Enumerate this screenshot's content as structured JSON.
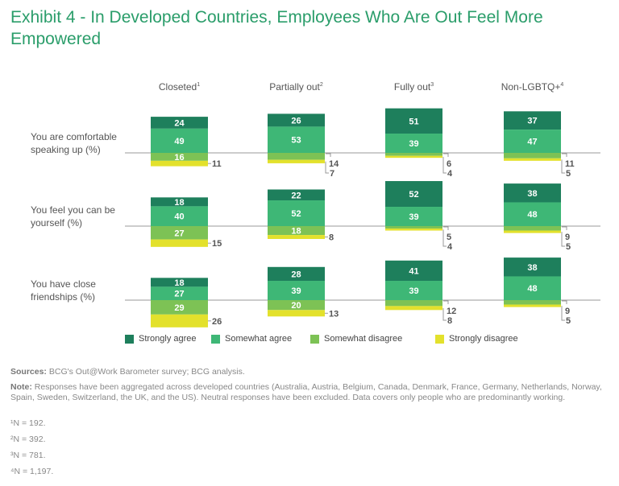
{
  "title": "Exhibit 4 - In Developed Countries, Employees Who Are Out Feel More Empowered",
  "chart_data": {
    "type": "bar",
    "subtype": "diverging-stacked",
    "title": "Exhibit 4 - In Developed Countries, Employees Who Are Out Feel More Empowered",
    "groups": [
      {
        "label": "Closeted",
        "note": "1"
      },
      {
        "label": "Partially out",
        "note": "2"
      },
      {
        "label": "Fully out",
        "note": "3"
      },
      {
        "label": "Non-LGBTQ+",
        "note": "4"
      }
    ],
    "rows": [
      {
        "label": "You are comfortable speaking up (%)",
        "values": [
          [
            24,
            49,
            16,
            11
          ],
          [
            26,
            53,
            14,
            7
          ],
          [
            51,
            39,
            6,
            4
          ],
          [
            37,
            47,
            11,
            5
          ]
        ]
      },
      {
        "label": "You feel you can be yourself (%)",
        "values": [
          [
            18,
            40,
            27,
            15
          ],
          [
            22,
            52,
            18,
            8
          ],
          [
            52,
            39,
            5,
            4
          ],
          [
            38,
            48,
            9,
            5
          ]
        ]
      },
      {
        "label": "You have close friendships (%)",
        "values": [
          [
            18,
            27,
            29,
            26
          ],
          [
            28,
            39,
            20,
            13
          ],
          [
            41,
            39,
            12,
            8
          ],
          [
            38,
            48,
            9,
            5
          ]
        ]
      }
    ],
    "series": [
      {
        "name": "Strongly agree",
        "color": "#1e7f5c"
      },
      {
        "name": "Somewhat agree",
        "color": "#3eb776"
      },
      {
        "name": "Somewhat disagree",
        "color": "#7dc255"
      },
      {
        "name": "Strongly disagree",
        "color": "#e3e12c"
      }
    ],
    "legend_position": "bottom"
  },
  "footer": {
    "sources_label": "Sources:",
    "sources": "BCG's Out@Work Barometer survey; BCG analysis.",
    "note_label": "Note:",
    "note": "Responses have been aggregated across developed countries (Australia, Austria, Belgium, Canada, Denmark, France, Germany, Netherlands, Norway, Spain, Sweden, Switzerland, the UK, and the US). Neutral responses have been excluded. Data covers only people who are predominantly working.",
    "n": [
      "¹N = 192.",
      "²N = 392.",
      "³N = 781.",
      "⁴N = 1,197."
    ]
  }
}
